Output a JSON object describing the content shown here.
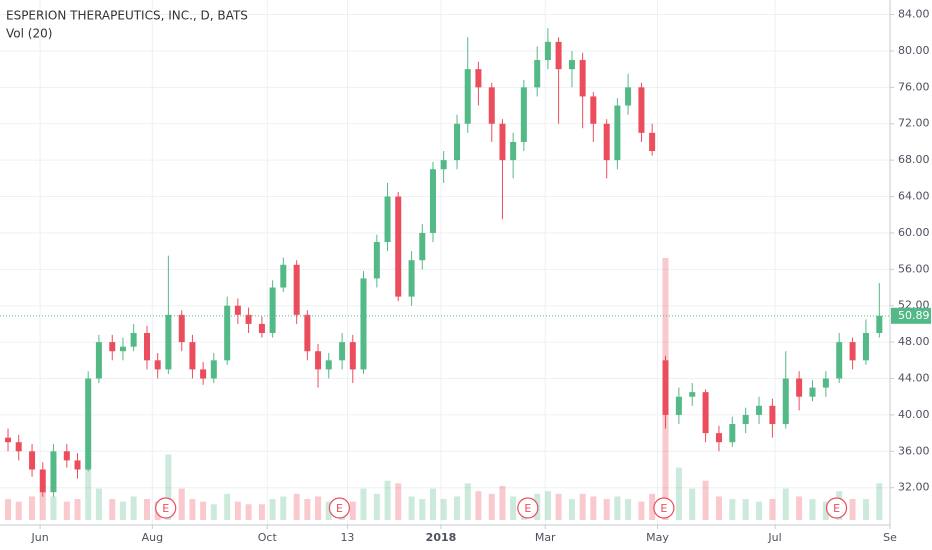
{
  "chart_data": {
    "type": "candlestick",
    "title": "ESPERION THERAPEUTICS, INC., D, BATS",
    "indicator": "Vol (20)",
    "x": [
      0,
      4,
      9,
      13,
      17,
      22,
      26,
      30,
      34,
      39,
      43,
      47,
      52,
      56,
      60,
      65,
      69,
      73,
      77,
      82,
      86,
      90,
      95,
      99,
      103,
      108,
      112,
      116,
      120,
      125,
      129,
      133,
      138,
      142,
      146,
      151,
      155,
      159,
      163,
      168,
      172,
      176,
      181,
      185,
      189,
      193,
      198,
      202,
      206,
      211,
      215,
      219,
      224,
      228,
      232,
      237,
      241,
      246,
      251,
      256,
      261,
      266,
      271,
      276,
      281,
      286,
      291,
      296,
      301,
      306,
      311,
      316,
      321,
      326
    ],
    "open": [
      37.5,
      37,
      36,
      34,
      31.5,
      36,
      35,
      34,
      44,
      48,
      47,
      47.5,
      49,
      46,
      45,
      51,
      48,
      45,
      44,
      46,
      52,
      51,
      50,
      49,
      54,
      56.5,
      51,
      47,
      45,
      46,
      48,
      45,
      55,
      59,
      64,
      53,
      57,
      60,
      67,
      68,
      72,
      78,
      76,
      72,
      68,
      70,
      76,
      79,
      81,
      78,
      79,
      75,
      72,
      68,
      74,
      76,
      71,
      46,
      40,
      42,
      42.5,
      38,
      37,
      39,
      40,
      41,
      39,
      44,
      42,
      43,
      44,
      48,
      46,
      49
    ],
    "high": [
      38.5,
      37.8,
      36.8,
      34.8,
      36.8,
      36.8,
      35.8,
      44.8,
      48.8,
      48.8,
      48.5,
      50,
      49.8,
      46.8,
      57.5,
      51.5,
      48.8,
      45.8,
      46.8,
      53,
      52.8,
      51.8,
      50.8,
      54.8,
      57.3,
      57,
      51.5,
      47.8,
      46.8,
      49,
      48.8,
      55.8,
      59.8,
      65.5,
      64.5,
      58,
      61,
      67.8,
      69,
      73,
      81.5,
      78.8,
      76.5,
      72.5,
      71,
      76.8,
      80.5,
      82.5,
      81.5,
      80,
      79.8,
      75.5,
      72.5,
      74.8,
      77.5,
      76.5,
      72,
      46.5,
      43,
      43.5,
      42.8,
      38.8,
      39.8,
      40.8,
      42,
      41.8,
      47,
      44.8,
      43.8,
      44.8,
      49,
      48.5,
      50.5,
      54.5
    ],
    "low": [
      36,
      35,
      33.2,
      31,
      31,
      34.2,
      33,
      33.8,
      43.5,
      46,
      46,
      47,
      45,
      44,
      44.5,
      47,
      44,
      43.3,
      43.5,
      45.5,
      50,
      49,
      48.5,
      48.5,
      53.5,
      50,
      46,
      43,
      44,
      45,
      43.5,
      44.5,
      54,
      58,
      52.5,
      52,
      56,
      59,
      65.5,
      67,
      71,
      74,
      70,
      61.5,
      66,
      69,
      75,
      78,
      72,
      76,
      71.5,
      70,
      66,
      67,
      73,
      70,
      68.5,
      38.5,
      39,
      41,
      37,
      36,
      36.5,
      38,
      39,
      37.5,
      38.5,
      40.5,
      41.5,
      42,
      43.5,
      45,
      45.5,
      48.5
    ],
    "close": [
      37,
      36,
      34,
      31.5,
      36,
      35,
      34,
      44,
      48,
      47,
      47.5,
      49,
      46,
      45,
      51,
      48,
      45,
      44,
      46,
      52,
      51,
      50,
      49,
      54,
      56.5,
      51,
      47,
      45,
      46,
      48,
      45,
      55,
      59,
      64,
      53,
      57,
      60,
      67,
      68,
      72,
      78,
      76,
      72,
      68,
      70,
      76,
      79,
      81,
      78,
      79,
      75,
      72,
      68,
      74,
      76,
      71,
      69,
      40,
      42,
      42.5,
      38,
      37,
      39,
      40,
      41,
      39,
      44,
      42,
      43,
      44,
      48,
      46,
      49,
      50.89
    ],
    "volume": [
      0.8,
      0.7,
      0.9,
      1.1,
      0.9,
      0.7,
      0.8,
      2,
      1.2,
      0.8,
      0.7,
      0.9,
      0.8,
      0.7,
      2.5,
      1.2,
      0.8,
      0.7,
      0.6,
      1,
      0.7,
      0.6,
      0.6,
      0.8,
      0.9,
      1,
      0.8,
      0.9,
      0.7,
      0.6,
      0.7,
      1.2,
      1,
      1.5,
      1.4,
      0.9,
      0.8,
      1.2,
      0.8,
      0.9,
      1.4,
      1.1,
      1,
      1.3,
      0.9,
      0.8,
      1,
      1.1,
      1,
      0.8,
      1,
      0.9,
      0.8,
      0.9,
      0.8,
      0.7,
      1,
      10,
      2,
      1.2,
      1.5,
      0.9,
      0.8,
      0.8,
      0.7,
      0.8,
      1.2,
      0.9,
      0.8,
      0.7,
      1.1,
      0.8,
      0.8,
      1.4
    ],
    "up_color": "#53b987",
    "down_color": "#eb4d5c",
    "xlim": [
      -3,
      330
    ],
    "xticks": [
      {
        "value": 12,
        "label": "Jun"
      },
      {
        "value": 54,
        "label": "Aug"
      },
      {
        "value": 97,
        "label": "Oct"
      },
      {
        "value": 127,
        "label": "13"
      },
      {
        "value": 162,
        "label": "2018"
      },
      {
        "value": 201,
        "label": "Mar"
      },
      {
        "value": 243,
        "label": "May"
      },
      {
        "value": 287,
        "label": "Jul"
      },
      {
        "value": 330,
        "label": "Se"
      }
    ],
    "ylim": [
      27.9,
      85.6
    ],
    "yticks": [
      {
        "value": 32,
        "label": "32.00"
      },
      {
        "value": 36,
        "label": "36.00"
      },
      {
        "value": 40,
        "label": "40.00"
      },
      {
        "value": 44,
        "label": "44.00"
      },
      {
        "value": 48,
        "label": "48.00"
      },
      {
        "value": 52,
        "label": "52.00"
      },
      {
        "value": 56,
        "label": "56.00"
      },
      {
        "value": 60,
        "label": "60.00"
      },
      {
        "value": 64,
        "label": "64.00"
      },
      {
        "value": 68,
        "label": "68.00"
      },
      {
        "value": 72,
        "label": "72.00"
      },
      {
        "value": 76,
        "label": "76.00"
      },
      {
        "value": 80,
        "label": "80.00"
      },
      {
        "value": 84,
        "label": "84.00"
      }
    ],
    "y2lim": [
      0,
      10
    ],
    "events": [
      {
        "x": 59,
        "label": "E"
      },
      {
        "x": 124,
        "label": "E"
      },
      {
        "x": 194.5,
        "label": "E"
      },
      {
        "x": 245.4,
        "label": "E"
      },
      {
        "x": 310,
        "label": "E"
      }
    ],
    "grid": true
  }
}
